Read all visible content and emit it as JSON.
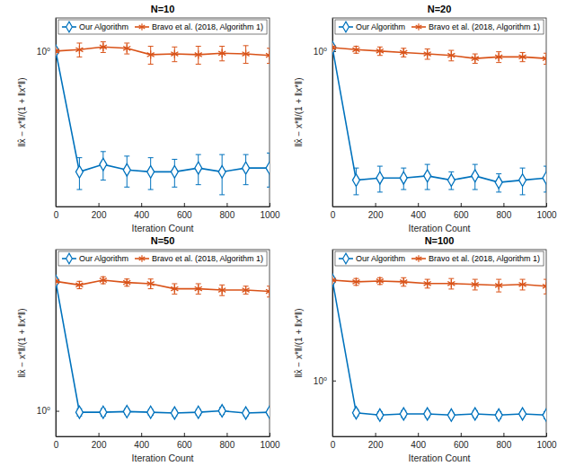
{
  "chart_data": [
    {
      "type": "line",
      "title": "N=10",
      "x_label": "Iteration Count",
      "y_label": "‖x̂ − x*‖/(1 + ‖x*‖)",
      "x": [
        0,
        111,
        222,
        333,
        444,
        556,
        667,
        778,
        889,
        1000
      ],
      "xlim": [
        0,
        1000
      ],
      "xticks": [
        0,
        200,
        400,
        600,
        800,
        1000
      ],
      "ylim": [
        0.11,
        1.6
      ],
      "yticks": [
        {
          "value": 1,
          "label": "10⁰"
        }
      ],
      "log": "y",
      "grid": false,
      "legend": "north",
      "series": [
        {
          "name": "Our Algorithm",
          "color": "#0072BD",
          "marker": "diamond",
          "values": [
            1.0,
            0.18,
            0.2,
            0.185,
            0.18,
            0.18,
            0.19,
            0.18,
            0.19,
            0.19
          ],
          "errors": [
            0.02,
            0.04,
            0.04,
            0.04,
            0.04,
            0.035,
            0.04,
            0.05,
            0.04,
            0.045
          ]
        },
        {
          "name": "Bravo et al. (2018, Algorithm 1)",
          "color": "#D95319",
          "marker": "asterisk",
          "values": [
            1.0,
            1.02,
            1.06,
            1.04,
            0.95,
            0.96,
            0.95,
            0.97,
            0.96,
            0.94
          ],
          "errors": [
            0.02,
            0.1,
            0.08,
            0.08,
            0.12,
            0.1,
            0.12,
            0.1,
            0.12,
            0.1
          ]
        }
      ]
    },
    {
      "type": "line",
      "title": "N=20",
      "x_label": "Iteration Count",
      "y_label": "‖x̂ − x*‖/(1 + ‖x*‖)",
      "x": [
        0,
        111,
        222,
        333,
        444,
        556,
        667,
        778,
        889,
        1000
      ],
      "xlim": [
        0,
        1000
      ],
      "xticks": [
        0,
        200,
        400,
        600,
        800,
        1000
      ],
      "ylim": [
        0.11,
        1.6
      ],
      "yticks": [
        {
          "value": 1,
          "label": "10⁰"
        }
      ],
      "log": "y",
      "grid": false,
      "legend": "north",
      "series": [
        {
          "name": "Our Algorithm",
          "color": "#0072BD",
          "marker": "diamond",
          "values": [
            1.05,
            0.16,
            0.165,
            0.165,
            0.17,
            0.16,
            0.17,
            0.155,
            0.16,
            0.165
          ],
          "errors": [
            0.02,
            0.03,
            0.03,
            0.025,
            0.03,
            0.02,
            0.03,
            0.02,
            0.03,
            0.03
          ]
        },
        {
          "name": "Bravo et al. (2018, Algorithm 1)",
          "color": "#D95319",
          "marker": "asterisk",
          "values": [
            1.05,
            1.02,
            1.0,
            0.98,
            0.96,
            0.94,
            0.9,
            0.92,
            0.92,
            0.9
          ],
          "errors": [
            0.02,
            0.05,
            0.06,
            0.06,
            0.07,
            0.07,
            0.06,
            0.07,
            0.06,
            0.07
          ]
        }
      ]
    },
    {
      "type": "line",
      "title": "N=50",
      "x_label": "Iteration Count",
      "y_label": "‖x̂ − x*‖/(1 + ‖x*‖)",
      "x": [
        0,
        111,
        222,
        333,
        444,
        556,
        667,
        778,
        889,
        1000
      ],
      "xlim": [
        0,
        1000
      ],
      "xticks": [
        0,
        200,
        400,
        600,
        800,
        1000
      ],
      "ylim": [
        0.7,
        9.5
      ],
      "yticks": [
        {
          "value": 1,
          "label": "10⁰"
        }
      ],
      "log": "y",
      "grid": false,
      "legend": "north",
      "series": [
        {
          "name": "Our Algorithm",
          "color": "#0072BD",
          "marker": "diamond",
          "values": [
            6.1,
            0.98,
            0.98,
            0.99,
            0.98,
            0.97,
            0.98,
            1.0,
            0.97,
            0.98
          ],
          "errors": [
            0.1,
            0.05,
            0.05,
            0.04,
            0.04,
            0.04,
            0.04,
            0.05,
            0.04,
            0.04
          ]
        },
        {
          "name": "Bravo et al. (2018, Algorithm 1)",
          "color": "#D95319",
          "marker": "asterisk",
          "values": [
            6.1,
            5.8,
            6.2,
            6.0,
            5.9,
            5.5,
            5.5,
            5.4,
            5.4,
            5.3
          ],
          "errors": [
            0.1,
            0.3,
            0.3,
            0.3,
            0.4,
            0.4,
            0.4,
            0.4,
            0.3,
            0.4
          ]
        }
      ]
    },
    {
      "type": "line",
      "title": "N=100",
      "x_label": "Iteration Count",
      "y_label": "‖x̂ − x*‖/(1 + ‖x*‖)",
      "x": [
        0,
        111,
        222,
        333,
        444,
        556,
        667,
        778,
        889,
        1000
      ],
      "xlim": [
        0,
        1000
      ],
      "xticks": [
        0,
        200,
        400,
        600,
        800,
        1000
      ],
      "ylim": [
        0.45,
        6.5
      ],
      "yticks": [
        {
          "value": 1,
          "label": "10⁰"
        }
      ],
      "log": "y",
      "grid": false,
      "legend": "north",
      "series": [
        {
          "name": "Our Algorithm",
          "color": "#0072BD",
          "marker": "diamond",
          "values": [
            4.2,
            0.63,
            0.61,
            0.62,
            0.62,
            0.61,
            0.62,
            0.61,
            0.62,
            0.61
          ],
          "errors": [
            0.05,
            0.03,
            0.03,
            0.03,
            0.03,
            0.02,
            0.03,
            0.03,
            0.02,
            0.03
          ]
        },
        {
          "name": "Bravo et al. (2018, Algorithm 1)",
          "color": "#D95319",
          "marker": "asterisk",
          "values": [
            4.2,
            4.1,
            4.15,
            4.1,
            4.0,
            4.0,
            3.95,
            3.9,
            3.95,
            3.85
          ],
          "errors": [
            0.05,
            0.2,
            0.2,
            0.25,
            0.25,
            0.3,
            0.3,
            0.35,
            0.3,
            0.4
          ]
        }
      ]
    }
  ]
}
